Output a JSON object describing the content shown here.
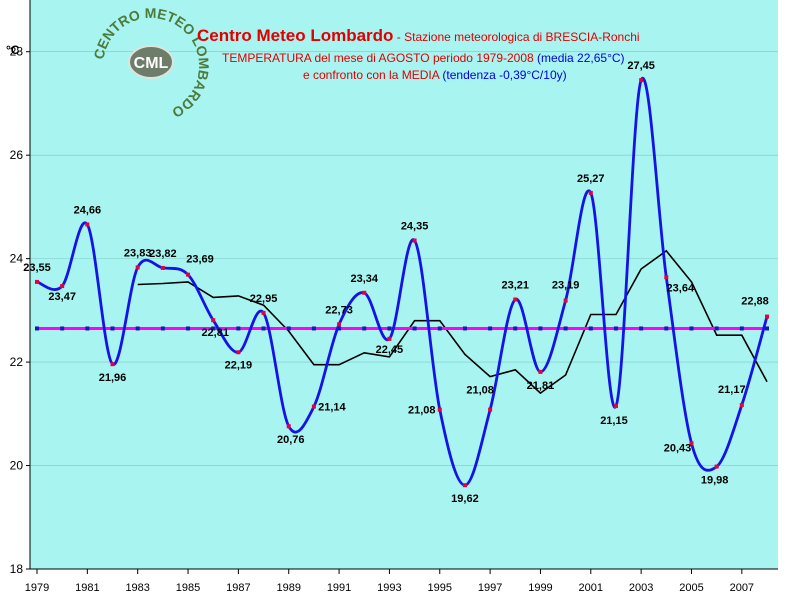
{
  "header": {
    "title": "Centro Meteo Lombardo",
    "title_suffix": " - Stazione meteorologica di BRESCIA-Ronchi",
    "line2_a": "TEMPERATURA del mese di AGOSTO periodo 1979-2008",
    "line2_b": " (media 22,65°C)",
    "line3_a": "e confronto con la MEDIA",
    "line3_b": " (tendenza -0,39°C/10y)"
  },
  "logo": {
    "ring_text": "CENTRO METEO LOMBARDO",
    "center_text": "CML"
  },
  "colors": {
    "plot_bg": "#A8F4F0",
    "series_line": "#1414E6",
    "series_marker": "#E8003C",
    "trend_line": "#000000",
    "mean_line": "#FF00FF",
    "mean_marker": "#1A1AB0",
    "title_red": "#E00000",
    "title_blue": "#0000E0"
  },
  "chart_data": {
    "type": "line",
    "ylabel": "°C",
    "ylim": [
      18,
      29
    ],
    "yticks": [
      18,
      20,
      22,
      24,
      26,
      28
    ],
    "x": [
      1979,
      1980,
      1981,
      1982,
      1983,
      1984,
      1985,
      1986,
      1987,
      1988,
      1989,
      1990,
      1991,
      1992,
      1993,
      1994,
      1995,
      1996,
      1997,
      1998,
      1999,
      2000,
      2001,
      2002,
      2003,
      2004,
      2005,
      2006,
      2007,
      2008
    ],
    "xticks": [
      1979,
      1981,
      1983,
      1985,
      1987,
      1989,
      1991,
      1993,
      1995,
      1997,
      1999,
      2001,
      2003,
      2005,
      2007
    ],
    "series": [
      {
        "values": [
          23.55,
          23.47,
          24.66,
          21.96,
          23.83,
          23.82,
          23.69,
          22.81,
          22.19,
          22.95,
          20.76,
          21.14,
          22.73,
          23.34,
          22.45,
          24.35,
          21.08,
          19.62,
          21.08,
          23.21,
          21.81,
          23.19,
          25.27,
          21.15,
          27.45,
          23.64,
          20.43,
          19.98,
          21.17,
          22.88
        ],
        "labels": [
          "23,55",
          "23,47",
          "24,66",
          "21,96",
          "23,83",
          "23,82",
          "23,69",
          "22,81",
          "22,19",
          "22,95",
          "20,76",
          "21,14",
          "22,73",
          "23,34",
          "22,45",
          "24,35",
          "21,08",
          "19,62",
          "21,08",
          "23,21",
          "21,81",
          "23,19",
          "25,27",
          "21,15",
          "27,45",
          "23,64",
          "20,43",
          "19,98",
          "21,17",
          "22,88"
        ]
      },
      {
        "x": [
          1983,
          1984,
          1985,
          1986,
          1987,
          1988,
          1989,
          1990,
          1991,
          1992,
          1993,
          1994,
          1995,
          1996,
          1997,
          1998,
          1999,
          2000,
          2001,
          2002,
          2003,
          2004,
          2005,
          2006,
          2007,
          2008
        ],
        "values": [
          23.5,
          23.52,
          23.55,
          23.25,
          23.28,
          23.1,
          22.6,
          21.95,
          21.95,
          22.18,
          22.1,
          22.8,
          22.8,
          22.15,
          21.72,
          21.85,
          21.4,
          21.75,
          22.92,
          22.92,
          23.8,
          24.15,
          23.55,
          22.52,
          22.52,
          21.62
        ]
      },
      {
        "values": [
          22.65,
          22.65,
          22.65,
          22.65,
          22.65,
          22.65,
          22.65,
          22.65,
          22.65,
          22.65,
          22.65,
          22.65,
          22.65,
          22.65,
          22.65,
          22.65,
          22.65,
          22.65,
          22.65,
          22.65,
          22.65,
          22.65,
          22.65,
          22.65,
          22.65,
          22.65,
          22.65,
          22.65,
          22.65,
          22.65
        ]
      }
    ]
  }
}
